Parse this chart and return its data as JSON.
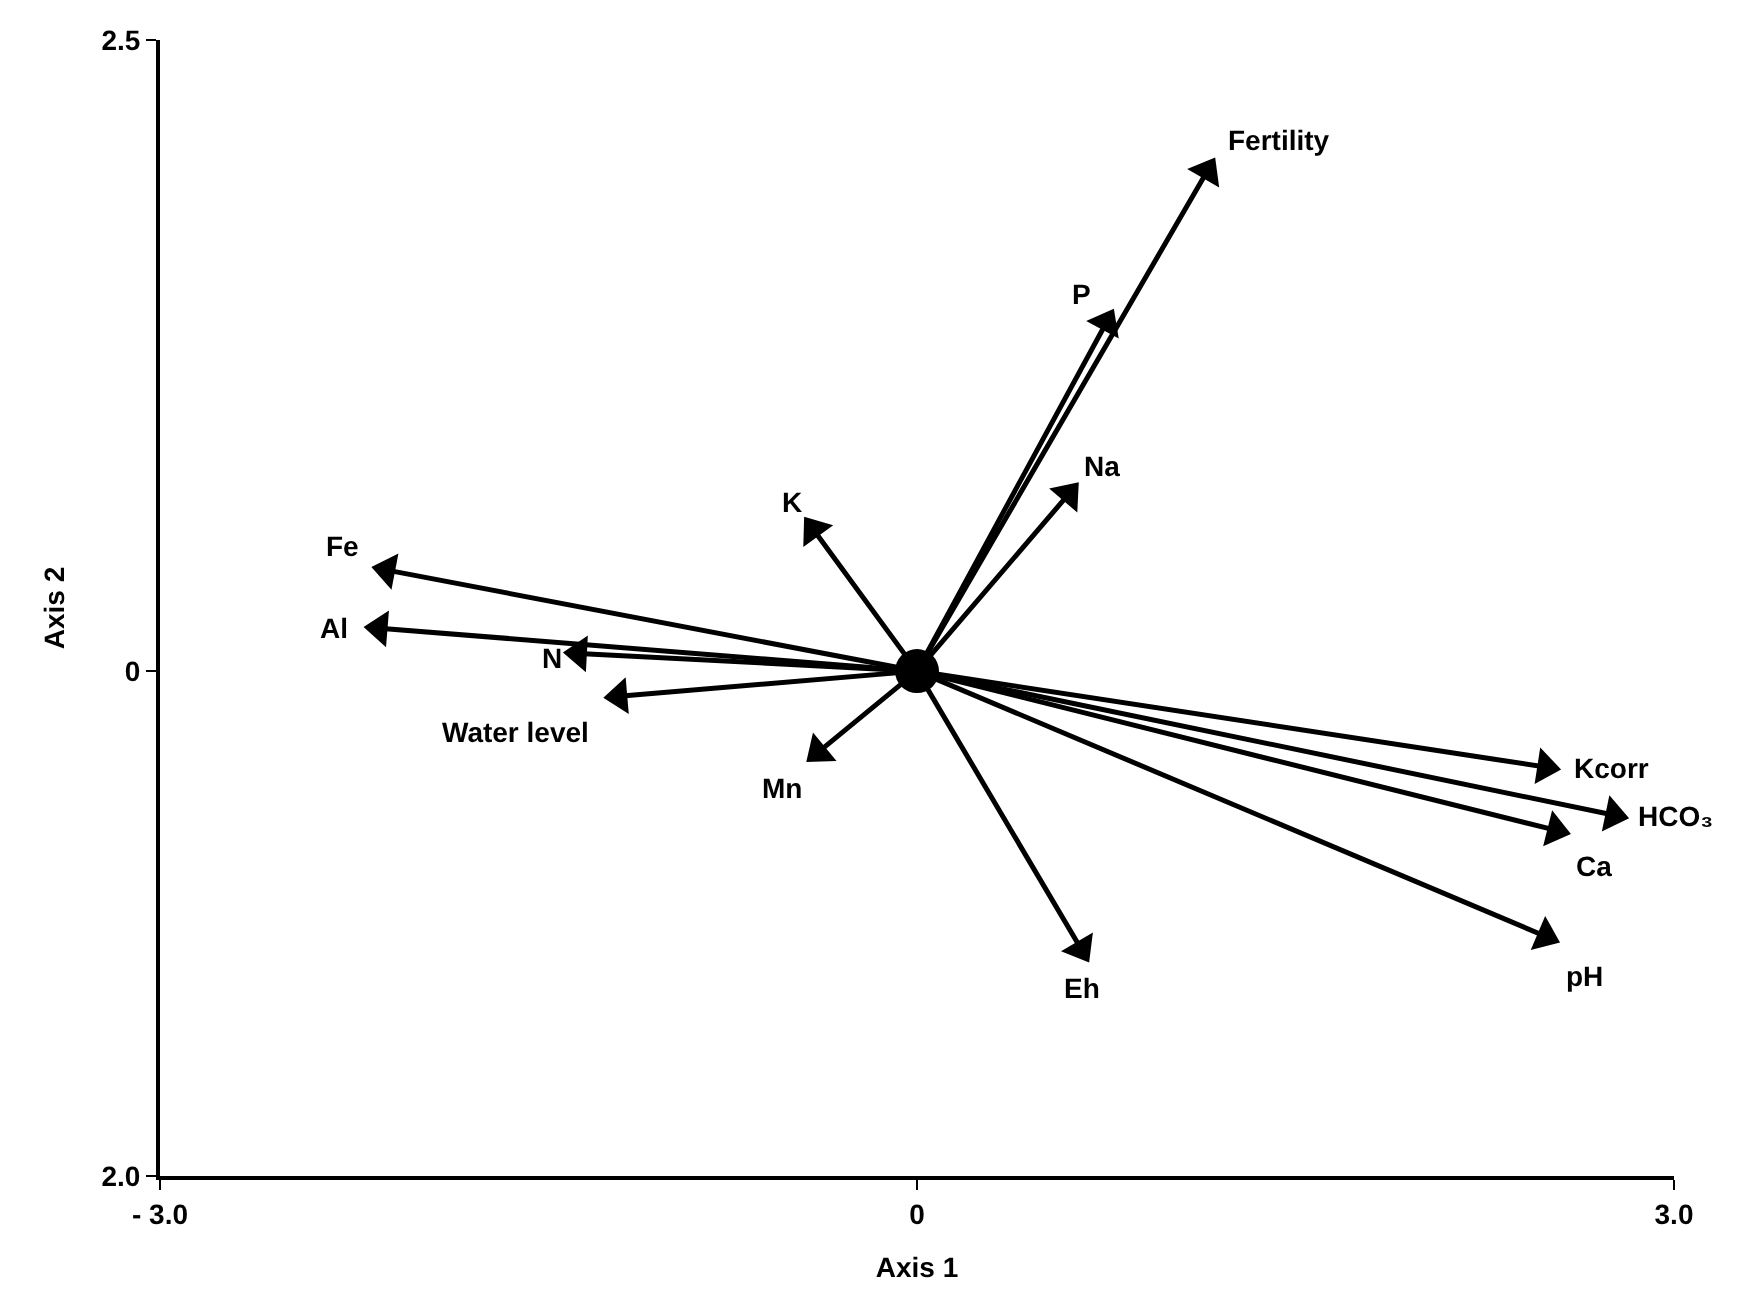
{
  "chart_data": {
    "type": "scatter",
    "xlabel": "Axis 1",
    "ylabel": "Axis 2",
    "xlim": [
      -3.0,
      3.0
    ],
    "xticks": [
      {
        "value": -3.0,
        "label": "- 3.0"
      },
      0,
      {
        "value": 3.0,
        "label": "3.0"
      }
    ],
    "ylim": [
      -2.0,
      2.5
    ],
    "yticks": [
      {
        "value": -2.0,
        "label": "2.0"
      },
      0,
      {
        "value": 2.5,
        "label": "2.5"
      }
    ],
    "legend": false,
    "series": [
      {
        "marker": "triangle",
        "color": "#000000",
        "x": [
          1.15,
          0.75,
          0.6,
          -0.41,
          -2.1,
          -2.13,
          -1.34,
          -1.18,
          -0.39,
          0.65,
          2.49,
          2.76,
          2.53,
          2.49
        ],
        "values": [
          1.98,
          1.38,
          0.7,
          0.56,
          0.4,
          0.17,
          0.07,
          -0.1,
          -0.32,
          -1.1,
          -0.38,
          -0.57,
          -0.63,
          -1.05
        ]
      },
      {
        "marker": "circle",
        "color": "#000000",
        "x": [
          0
        ],
        "values": [
          0
        ]
      }
    ],
    "annotations": [
      {
        "text": "Fertility",
        "x": 1.15,
        "y": 1.98
      },
      {
        "text": "P",
        "x": 0.75,
        "y": 1.38
      },
      {
        "text": "Na",
        "x": 0.6,
        "y": 0.7
      },
      {
        "text": "K",
        "x": -0.41,
        "y": 0.56
      },
      {
        "text": "Fe",
        "x": -2.1,
        "y": 0.4
      },
      {
        "text": "Al",
        "x": -2.13,
        "y": 0.17
      },
      {
        "text": "N",
        "x": -1.34,
        "y": 0.07
      },
      {
        "text": "Water level",
        "x": -1.18,
        "y": -0.1
      },
      {
        "text": "Mn",
        "x": -0.39,
        "y": -0.32
      },
      {
        "text": "Eh",
        "x": 0.65,
        "y": -1.1
      },
      {
        "text": "Kcorr",
        "x": 2.49,
        "y": -0.38
      },
      {
        "text": "HCO₃",
        "x": 2.76,
        "y": -0.57
      },
      {
        "text": "Ca",
        "x": 2.53,
        "y": -0.63
      },
      {
        "text": "pH",
        "x": 2.49,
        "y": -1.05
      }
    ]
  }
}
